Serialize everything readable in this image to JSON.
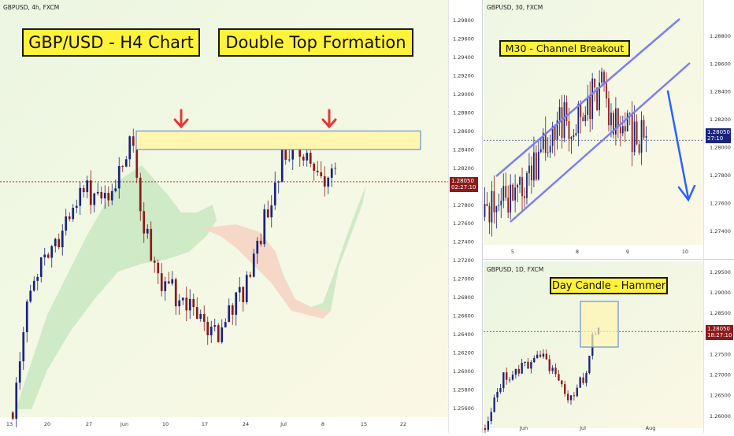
{
  "colors": {
    "bg_green": "#eef7e4",
    "bg_yellow": "#fbf9e6",
    "up": "#1a237e",
    "down": "#8b1a1a",
    "price_badge_main": "#8b1a1a",
    "price_badge_m30": "#1a237e",
    "channel": "#7e7ef0",
    "zone_fill": "#fff7b0",
    "zone_stroke": "#6c8fd6",
    "arrow_red": "#e53935",
    "arrow_blue": "#2962ff",
    "cloud_green": "#c9e8c1",
    "cloud_red": "#f5d4c4"
  },
  "main": {
    "symbol": "GBPUSD, 4h, FXCM",
    "banner_left": "GBP/USD - H4 Chart",
    "banner_right": "Double Top Formation",
    "price_label": "1.28050",
    "countdown": "02:27:10",
    "x_ticks": [
      "13",
      "20",
      "27",
      "Jun",
      "10",
      "17",
      "24",
      "Jul",
      "8",
      "15",
      "22"
    ],
    "y_ticks": [
      "1.29800",
      "1.29600",
      "1.29400",
      "1.29200",
      "1.29000",
      "1.28800",
      "1.28600",
      "1.28400",
      "1.28200",
      "1.28000",
      "1.27800",
      "1.27600",
      "1.27400",
      "1.27200",
      "1.27000",
      "1.26800",
      "1.26600",
      "1.26400",
      "1.26200",
      "1.26000",
      "1.25800",
      "1.25600"
    ]
  },
  "m30": {
    "symbol": "GBPUSD, 30, FXCM",
    "banner": "M30 - Channel Breakout",
    "price_label": "1.28050",
    "countdown": "27:10",
    "x_ticks": [
      "5",
      "8",
      "9",
      "10"
    ],
    "y_ticks": [
      "1.28800",
      "1.28600",
      "1.28400",
      "1.28200",
      "1.28000",
      "1.27800",
      "1.27600",
      "1.27400"
    ]
  },
  "d1": {
    "symbol": "GBPUSD, 1D, FXCM",
    "banner": "Day Candle - Hammer",
    "price_label": "1.28050",
    "countdown": "18:27:10",
    "x_ticks": [
      "Jun",
      "Jul",
      "Aug"
    ],
    "y_ticks": [
      "1.29500",
      "1.29000",
      "1.28500",
      "1.28000",
      "1.27500",
      "1.27000",
      "1.26500",
      "1.26000"
    ]
  },
  "chart_data": [
    {
      "type": "candlestick",
      "title": "GBP/USD - H4 Chart",
      "subtitle": "Double Top Formation",
      "symbol": "GBPUSD, 4h, FXCM",
      "ylim": [
        1.255,
        1.299
      ],
      "x_ticks": [
        "13",
        "20",
        "27",
        "Jun",
        "10",
        "17",
        "24",
        "Jul",
        "8",
        "15",
        "22"
      ],
      "path": [
        [
          "13",
          1.2555
        ],
        [
          "20",
          1.27
        ],
        [
          "27",
          1.276
        ],
        [
          "Jun",
          1.279
        ],
        [
          "10",
          1.28
        ],
        [
          "12",
          1.286
        ],
        [
          "13",
          1.2745
        ],
        [
          "17",
          1.269
        ],
        [
          "24",
          1.264
        ],
        [
          "Jul",
          1.268
        ],
        [
          "3",
          1.278
        ],
        [
          "8",
          1.2845
        ],
        [
          "9",
          1.2805
        ]
      ],
      "last_price": 1.2805,
      "resistance_zone": [
        1.284,
        1.286
      ],
      "pattern": "Double Top"
    },
    {
      "type": "candlestick",
      "title": "M30 - Channel Breakout",
      "symbol": "GBPUSD, 30, FXCM",
      "ylim": [
        1.273,
        1.29
      ],
      "x_ticks": [
        "5",
        "8",
        "9",
        "10"
      ],
      "path": [
        [
          "4",
          1.275
        ],
        [
          "5",
          1.276
        ],
        [
          "5.5",
          1.277
        ],
        [
          "8",
          1.2815
        ],
        [
          "8.5",
          1.283
        ],
        [
          "8.8",
          1.2845
        ],
        [
          "9",
          1.2815
        ],
        [
          "9.2",
          1.2808
        ]
      ],
      "last_price": 1.2805,
      "channel": "ascending, broken to downside"
    },
    {
      "type": "candlestick",
      "title": "Day Candle - Hammer",
      "symbol": "GBPUSD, 1D, FXCM",
      "ylim": [
        1.257,
        1.297
      ],
      "x_ticks": [
        "Jun",
        "Jul",
        "Aug"
      ],
      "path": [
        [
          "May",
          1.256
        ],
        [
          "Jun",
          1.272
        ],
        [
          "mid-Jun",
          1.276
        ],
        [
          "late-Jun",
          1.265
        ],
        [
          "Jul",
          1.267
        ],
        [
          "mid-Jul",
          1.282
        ],
        [
          "last",
          1.2805
        ]
      ],
      "last_price": 1.2805,
      "pattern": "Hammer"
    }
  ]
}
